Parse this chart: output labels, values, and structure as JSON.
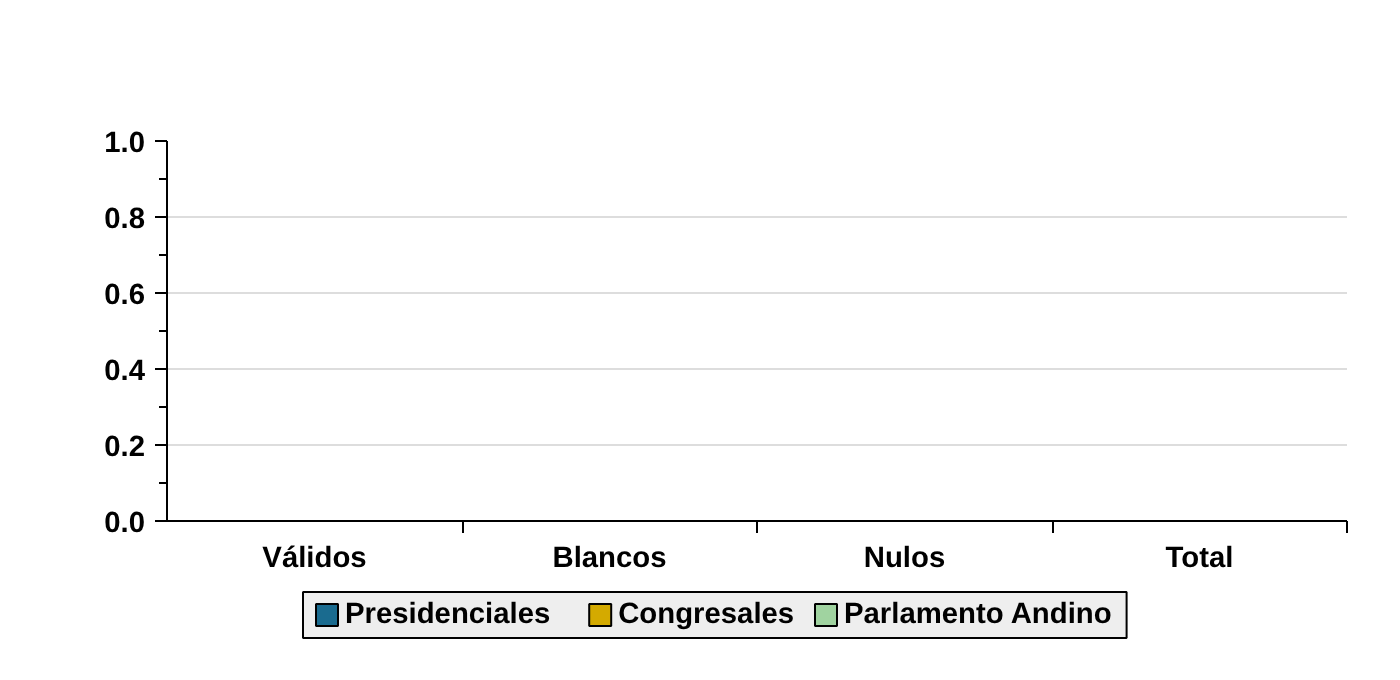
{
  "chart_data": {
    "type": "bar",
    "categories": [
      "Válidos",
      "Blancos",
      "Nulos",
      "Total"
    ],
    "series": [
      {
        "name": "Presidenciales",
        "color": "#1a6b8f",
        "values": [
          0,
          0,
          0,
          0
        ]
      },
      {
        "name": "Congresales",
        "color": "#d4aa00",
        "values": [
          0,
          0,
          0,
          0
        ]
      },
      {
        "name": "Parlamento Andino",
        "color": "#a0d3a0",
        "values": [
          0,
          0,
          0,
          0
        ]
      }
    ],
    "ylim": [
      0,
      1
    ],
    "yticks": [
      {
        "value": 0,
        "label": "0.0"
      },
      {
        "value": 0.1,
        "label": null
      },
      {
        "value": 0.2,
        "label": "0.2"
      },
      {
        "value": 0.3,
        "label": null
      },
      {
        "value": 0.4,
        "label": "0.4"
      },
      {
        "value": 0.5,
        "label": null
      },
      {
        "value": 0.6,
        "label": "0.6"
      },
      {
        "value": 0.7,
        "label": null
      },
      {
        "value": 0.8,
        "label": "0.8"
      },
      {
        "value": 0.9,
        "label": null
      },
      {
        "value": 1,
        "label": "1.0"
      }
    ],
    "grid": "y",
    "legend": "bottom left"
  }
}
